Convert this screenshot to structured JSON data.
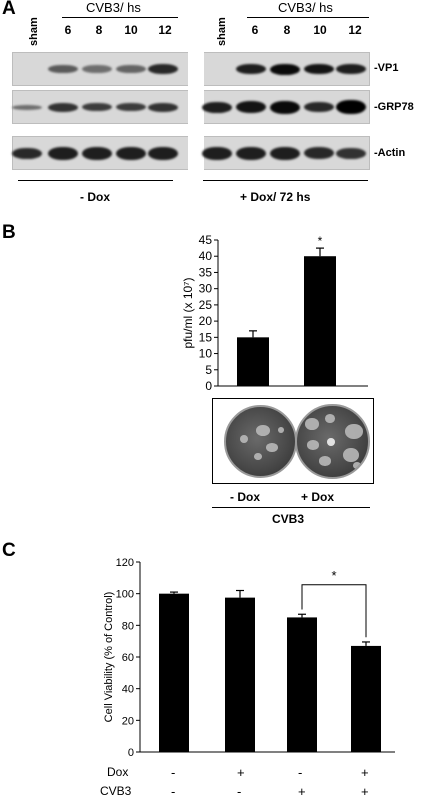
{
  "panel_a": {
    "letter": "A",
    "lanes_minus": [
      "6",
      "8",
      "10",
      "12"
    ],
    "lanes_plus": [
      "6",
      "8",
      "10",
      "12"
    ],
    "sham": "sham",
    "header_minus": "CVB3/ hs",
    "header_plus": "CVB3/ hs",
    "rows": [
      "-VP1",
      "-GRP78",
      "-Actin"
    ],
    "condition_minus": "- Dox",
    "condition_plus": "+ Dox/ 72 hs"
  },
  "panel_b": {
    "letter": "B",
    "plate_labels": [
      "- Dox",
      "+ Dox"
    ],
    "group_label": "CVB3"
  },
  "panel_c": {
    "letter": "C",
    "dox_label": "Dox",
    "cvb3_label": "CVB3",
    "dox_signs": [
      "-",
      "+",
      "-",
      "+"
    ],
    "cvb3_signs": [
      "-",
      "-",
      "+",
      "+"
    ]
  },
  "chart_data": [
    {
      "type": "bar",
      "categories": [
        "- Dox",
        "+ Dox"
      ],
      "values": [
        15,
        40
      ],
      "errors": [
        2,
        2.5
      ],
      "ylabel": "pfu/ml (x 10⁷)",
      "ylim": [
        0,
        45
      ],
      "yticks": [
        0,
        5,
        10,
        15,
        20,
        25,
        30,
        35,
        40,
        45
      ],
      "significance": {
        "bar": 1,
        "label": "*"
      },
      "grid": false,
      "color": "#000000"
    },
    {
      "type": "bar",
      "categories": [
        "-/-",
        "+/-",
        "-/+",
        "+/+"
      ],
      "values": [
        100,
        97.5,
        85,
        67
      ],
      "errors": [
        1,
        4.5,
        2,
        2.5
      ],
      "ylabel": "Cell Viability (% of Control)",
      "ylim": [
        0,
        120
      ],
      "yticks": [
        0,
        20,
        40,
        60,
        80,
        100,
        120
      ],
      "significance": {
        "from": 2,
        "to": 3,
        "label": "*"
      },
      "grid": false,
      "color": "#000000"
    }
  ]
}
